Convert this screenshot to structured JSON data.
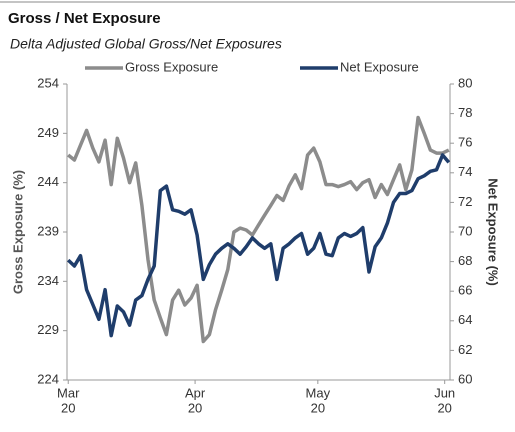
{
  "chart_data": {
    "type": "line",
    "title": "Gross / Net Exposure",
    "subtitle": "Delta Adjusted Global Gross/Net Exposures",
    "y_label": "Gross Exposure (%)",
    "y2_label": "Net Exposure (%)",
    "x": [
      0,
      1.5,
      3,
      4.5,
      6,
      7.5,
      9,
      10.5,
      12,
      13.5,
      15,
      16.5,
      18,
      19.5,
      21,
      22.5,
      24,
      25.5,
      27,
      28.5,
      30,
      31.5,
      33,
      34.5,
      36,
      37.5,
      39,
      40.5,
      42,
      43.5,
      45,
      46.5,
      48,
      49.5,
      51,
      52.5,
      54,
      55.5,
      57,
      58.5,
      60,
      61.5,
      63,
      64.5,
      66,
      67.5,
      69,
      70.5,
      72,
      73.5,
      75,
      76.5,
      78,
      79.5,
      81,
      82.5,
      84,
      85.5,
      87,
      88.5,
      90,
      91.5,
      93
    ],
    "xlim": [
      -0.3,
      93.3
    ],
    "xticks": [
      {
        "value": 0,
        "label": [
          "Mar",
          "20"
        ]
      },
      {
        "value": 31,
        "label": [
          "Apr",
          "20"
        ]
      },
      {
        "value": 61,
        "label": [
          "May",
          "20"
        ]
      },
      {
        "value": 92,
        "label": [
          "Jun",
          "20"
        ]
      }
    ],
    "ylim": [
      224,
      254
    ],
    "yticks": [
      224,
      229,
      234,
      239,
      244,
      249,
      254
    ],
    "y2lim": [
      60,
      80
    ],
    "y2ticks": [
      60,
      62,
      64,
      66,
      68,
      70,
      72,
      74,
      76,
      78,
      80
    ],
    "legend": "top",
    "series": [
      {
        "name": "Gross Exposure",
        "color": "#8c8c8c",
        "values": [
          246.8,
          246.3,
          247.8,
          249.3,
          247.5,
          246.1,
          248.3,
          243.8,
          248.5,
          246.5,
          244.0,
          246.0,
          241.7,
          236.2,
          232.1,
          230.3,
          228.6,
          232.1,
          233.1,
          231.6,
          232.3,
          233.6,
          227.9,
          228.6,
          231.1,
          233.1,
          235.2,
          239.0,
          239.4,
          239.2,
          238.7,
          239.7,
          240.7,
          241.7,
          242.7,
          242.2,
          243.7,
          244.8,
          243.4,
          246.8,
          247.5,
          246.1,
          243.8,
          243.8,
          243.6,
          243.8,
          244.1,
          243.3,
          244.0,
          244.3,
          242.5,
          243.8,
          242.8,
          244.3,
          245.8,
          243.3,
          245.3,
          250.6,
          249.0,
          247.3,
          247.0,
          247.0,
          247.3
        ]
      },
      {
        "name": "Net Exposure",
        "color": "#1f3d6b",
        "axis": "y2",
        "values": [
          68.1,
          67.7,
          68.4,
          66.1,
          65.1,
          64.1,
          66.1,
          63.0,
          65.0,
          64.6,
          63.7,
          65.4,
          65.7,
          66.8,
          67.7,
          72.8,
          73.1,
          71.5,
          71.4,
          71.2,
          71.5,
          69.8,
          66.8,
          67.8,
          68.5,
          68.9,
          69.2,
          68.9,
          68.5,
          69.0,
          69.6,
          69.2,
          68.9,
          69.2,
          66.8,
          68.9,
          69.2,
          69.6,
          69.9,
          68.5,
          68.9,
          69.9,
          68.5,
          68.4,
          69.6,
          69.9,
          69.7,
          69.9,
          70.3,
          67.3,
          69.0,
          69.6,
          70.6,
          72.0,
          72.6,
          72.6,
          72.8,
          73.6,
          73.8,
          74.1,
          74.2,
          75.2,
          74.7
        ]
      }
    ]
  }
}
